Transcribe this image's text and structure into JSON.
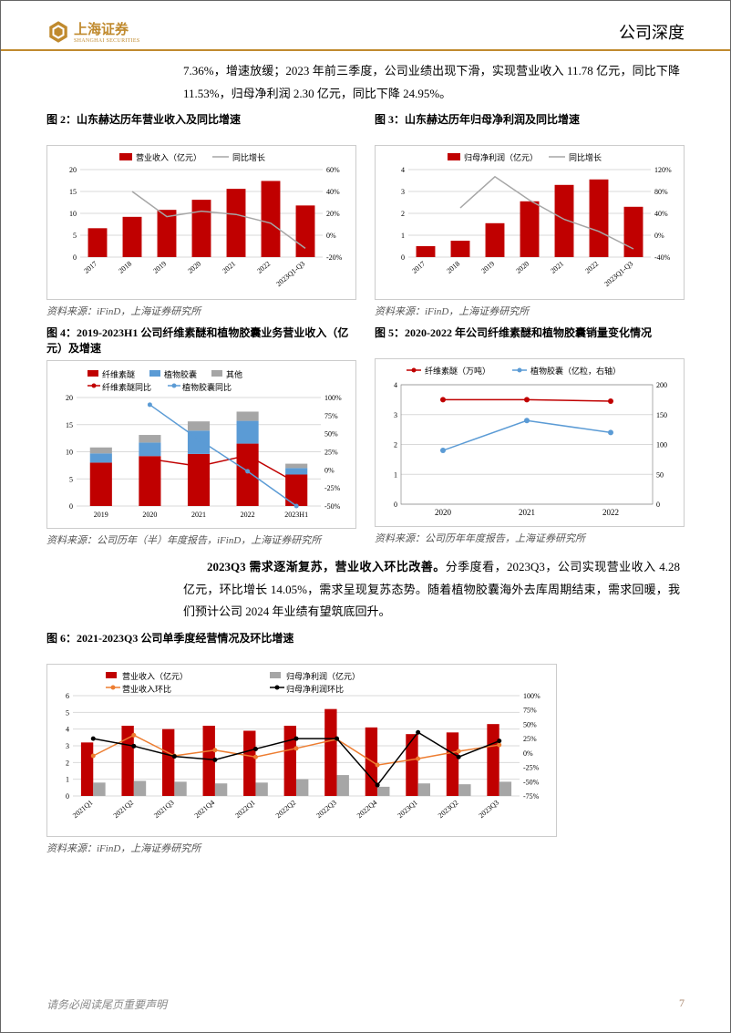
{
  "header": {
    "logo_cn": "上海证券",
    "logo_en": "SHANGHAI SECURITIES",
    "title": "公司深度"
  },
  "intro_para": "7.36%，增速放缓；2023 年前三季度，公司业绩出现下滑，实现营业收入 11.78 亿元，同比下降 11.53%，归母净利润 2.30 亿元，同比下降 24.95%。",
  "fig2": {
    "title": "图 2：山东赫达历年营业收入及同比增速",
    "source": "资料来源：iFinD，上海证券研究所",
    "legend_bar": "营业收入（亿元）",
    "legend_line": "同比增长",
    "categories": [
      "2017",
      "2018",
      "2019",
      "2020",
      "2021",
      "2022",
      "2023Q1-Q3"
    ],
    "bar_values": [
      6.6,
      9.2,
      10.8,
      13.1,
      15.6,
      17.4,
      11.8
    ],
    "line_values": [
      null,
      40,
      17,
      22,
      19,
      11,
      -12
    ],
    "y1_max": 20,
    "y1_step": 5,
    "y2_min": -20,
    "y2_max": 60,
    "y2_step": 20,
    "bar_color": "#c00000",
    "line_color": "#a6a6a6",
    "grid_color": "#d9d9d9"
  },
  "fig3": {
    "title": "图 3：山东赫达历年归母净利润及同比增速",
    "source": "资料来源：iFinD，上海证券研究所",
    "legend_bar": "归母净利润（亿元）",
    "legend_line": "同比增长",
    "categories": [
      "2017",
      "2018",
      "2019",
      "2020",
      "2021",
      "2022",
      "2023Q1-Q3"
    ],
    "bar_values": [
      0.5,
      0.75,
      1.55,
      2.55,
      3.3,
      3.55,
      2.3
    ],
    "line_values": [
      null,
      50,
      107,
      64,
      29,
      7,
      -25
    ],
    "y1_max": 4,
    "y1_step": 1,
    "y2_min": -40,
    "y2_max": 120,
    "y2_step": 40,
    "bar_color": "#c00000",
    "line_color": "#a6a6a6",
    "grid_color": "#d9d9d9"
  },
  "fig4": {
    "title": "图 4：2019-2023H1 公司纤维素醚和植物胶囊业务营业收入（亿元）及增速",
    "source": "资料来源：公司历年（半）年度报告，iFinD，上海证券研究所",
    "legend_s1": "纤维素醚",
    "legend_s2": "植物胶囊",
    "legend_s3": "其他",
    "legend_l1": "纤维素醚同比",
    "legend_l2": "植物胶囊同比",
    "categories": [
      "2019",
      "2020",
      "2021",
      "2022",
      "2023H1"
    ],
    "stack1": [
      8.0,
      9.2,
      9.6,
      11.5,
      5.8
    ],
    "stack2": [
      1.7,
      2.5,
      4.3,
      4.2,
      1.2
    ],
    "stack3": [
      1.1,
      1.4,
      1.7,
      1.7,
      0.8
    ],
    "line1": [
      null,
      15,
      5,
      20,
      -18
    ],
    "line2": [
      null,
      90,
      42,
      -2,
      -50
    ],
    "y1_max": 20,
    "y1_step": 5,
    "y2_min": -50,
    "y2_max": 100,
    "y2_step": 25,
    "c1": "#c00000",
    "c2": "#5b9bd5",
    "c3": "#a6a6a6",
    "lc1": "#c00000",
    "lc2": "#5b9bd5",
    "grid_color": "#d9d9d9"
  },
  "fig5": {
    "title": "图 5：2020-2022 年公司纤维素醚和植物胶囊销量变化情况",
    "source": "资料来源：公司历年年度报告，上海证券研究所",
    "legend_l1": "纤维素醚（万吨）",
    "legend_l2": "植物胶囊（亿粒，右轴）",
    "categories": [
      "2020",
      "2021",
      "2022"
    ],
    "line1": [
      3.5,
      3.5,
      3.45
    ],
    "line2": [
      90,
      140,
      120
    ],
    "y1_max": 4,
    "y1_step": 1,
    "y2_max": 200,
    "y2_step": 50,
    "lc1": "#c00000",
    "lc2": "#5b9bd5",
    "grid_color": "#d9d9d9"
  },
  "mid_bold": "2023Q3 需求逐渐复苏，营业收入环比改善。",
  "mid_para": "分季度看，2023Q3，公司实现营业收入 4.28 亿元，环比增长 14.05%，需求呈现复苏态势。随着植物胶囊海外去库周期结束，需求回暖，我们预计公司 2024 年业绩有望筑底回升。",
  "fig6": {
    "title": "图 6：2021-2023Q3 公司单季度经营情况及环比增速",
    "source": "资料来源：iFinD，上海证券研究所",
    "legend_b1": "营业收入（亿元）",
    "legend_b2": "归母净利润（亿元）",
    "legend_l1": "营业收入环比",
    "legend_l2": "归母净利润环比",
    "categories": [
      "2021Q1",
      "2021Q2",
      "2021Q3",
      "2021Q4",
      "2022Q1",
      "2022Q2",
      "2022Q3",
      "2022Q4",
      "2023Q1",
      "2023Q2",
      "2023Q3"
    ],
    "bar1": [
      3.2,
      4.2,
      4.0,
      4.2,
      3.9,
      4.2,
      5.2,
      4.1,
      3.7,
      3.8,
      4.3
    ],
    "bar2": [
      0.8,
      0.9,
      0.85,
      0.75,
      0.8,
      1.0,
      1.25,
      0.55,
      0.75,
      0.7,
      0.85
    ],
    "line1": [
      -5,
      31,
      -5,
      5,
      -7,
      8,
      24,
      -21,
      -10,
      3,
      14
    ],
    "line2": [
      25,
      12,
      -6,
      -12,
      7,
      25,
      25,
      -56,
      36,
      -7,
      21
    ],
    "y1_max": 6,
    "y1_step": 1,
    "y2_min": -75,
    "y2_max": 100,
    "y2_step": 25,
    "bc1": "#c00000",
    "bc2": "#a6a6a6",
    "lc1": "#ed7d31",
    "lc2": "#000000",
    "grid_color": "#d9d9d9"
  },
  "footer": {
    "disclaimer": "请务必阅读尾页重要声明",
    "page": "7"
  }
}
